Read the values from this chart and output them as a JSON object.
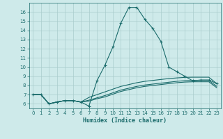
{
  "xlabel": "Humidex (Indice chaleur)",
  "background_color": "#ceeaea",
  "grid_color": "#aacccc",
  "line_color": "#1a6b6b",
  "xlim": [
    -0.5,
    23.5
  ],
  "ylim": [
    5.5,
    17.0
  ],
  "xticks": [
    0,
    1,
    2,
    3,
    4,
    5,
    6,
    7,
    8,
    9,
    10,
    11,
    12,
    13,
    14,
    15,
    16,
    17,
    18,
    19,
    20,
    21,
    22,
    23
  ],
  "yticks": [
    6,
    7,
    8,
    9,
    10,
    11,
    12,
    13,
    14,
    15,
    16
  ],
  "line1_x": [
    0,
    1,
    2,
    3,
    4,
    5,
    6,
    7,
    8,
    9,
    10,
    11,
    12,
    13,
    14,
    15,
    16,
    17,
    18,
    19,
    20,
    21,
    22,
    23
  ],
  "line1_y": [
    7.0,
    7.0,
    6.0,
    6.2,
    6.35,
    6.35,
    6.2,
    5.75,
    8.5,
    10.2,
    12.2,
    14.8,
    16.5,
    16.5,
    15.2,
    14.2,
    12.8,
    10.0,
    9.5,
    9.0,
    8.5,
    8.6,
    8.6,
    8.2
  ],
  "line2_x": [
    0,
    1,
    2,
    3,
    4,
    5,
    6,
    7,
    8,
    9,
    10,
    11,
    12,
    13,
    14,
    15,
    16,
    17,
    18,
    19,
    20,
    21,
    22,
    23
  ],
  "line2_y": [
    7.0,
    7.0,
    6.0,
    6.2,
    6.35,
    6.35,
    6.2,
    6.7,
    7.0,
    7.3,
    7.6,
    7.9,
    8.1,
    8.3,
    8.45,
    8.55,
    8.65,
    8.75,
    8.82,
    8.88,
    8.9,
    8.9,
    8.9,
    8.2
  ],
  "line3_x": [
    0,
    1,
    2,
    3,
    4,
    5,
    6,
    7,
    8,
    9,
    10,
    11,
    12,
    13,
    14,
    15,
    16,
    17,
    18,
    19,
    20,
    21,
    22,
    23
  ],
  "line3_y": [
    7.0,
    7.0,
    6.0,
    6.2,
    6.35,
    6.35,
    6.2,
    6.4,
    6.65,
    6.9,
    7.2,
    7.5,
    7.7,
    7.9,
    8.05,
    8.15,
    8.25,
    8.35,
    8.45,
    8.52,
    8.55,
    8.55,
    8.55,
    7.9
  ],
  "line4_x": [
    0,
    1,
    2,
    3,
    4,
    5,
    6,
    7,
    8,
    9,
    10,
    11,
    12,
    13,
    14,
    15,
    16,
    17,
    18,
    19,
    20,
    21,
    22,
    23
  ],
  "line4_y": [
    7.0,
    7.0,
    6.0,
    6.2,
    6.35,
    6.35,
    6.2,
    6.3,
    6.55,
    6.75,
    7.05,
    7.35,
    7.55,
    7.75,
    7.9,
    8.0,
    8.1,
    8.2,
    8.3,
    8.37,
    8.4,
    8.4,
    8.4,
    7.75
  ]
}
